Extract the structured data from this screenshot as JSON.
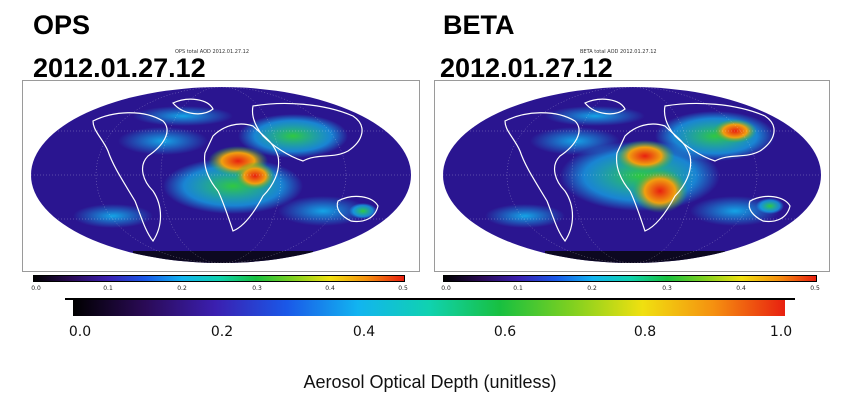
{
  "panels": [
    {
      "title": "OPS",
      "date": "2012.01.27.12",
      "caption": "OPS total AOD 2012.01.27.12",
      "colorbar_ticks": [
        "0.0",
        "0.1",
        "0.2",
        "0.3",
        "0.4",
        "0.5"
      ],
      "colorbar_range": [
        0,
        0.5
      ]
    },
    {
      "title": "BETA",
      "date": "2012.01.27.12",
      "caption": "BETA total AOD 2012.01.27.12",
      "colorbar_ticks": [
        "0.0",
        "0.1",
        "0.2",
        "0.3",
        "0.4",
        "0.5"
      ],
      "colorbar_range": [
        0,
        0.5
      ]
    }
  ],
  "shared_colorbar": {
    "ticks": [
      "0.0",
      "0.2",
      "0.4",
      "0.6",
      "0.8",
      "1.0"
    ],
    "range": [
      0,
      1.0
    ],
    "title": "Aerosol Optical Depth (unitless)"
  },
  "colors": {
    "ocean_low": "#2a1590",
    "background_dark": "#140a50",
    "aod_mid": "#18b54a",
    "aod_high": "#e52616",
    "coastline": "#ffffff"
  },
  "colormap": [
    "#000000",
    "#2a0a55",
    "#3b1fb0",
    "#1a58e8",
    "#12b4f0",
    "#10d2b0",
    "#18c040",
    "#7fd020",
    "#f0e010",
    "#f59010",
    "#e82010"
  ]
}
